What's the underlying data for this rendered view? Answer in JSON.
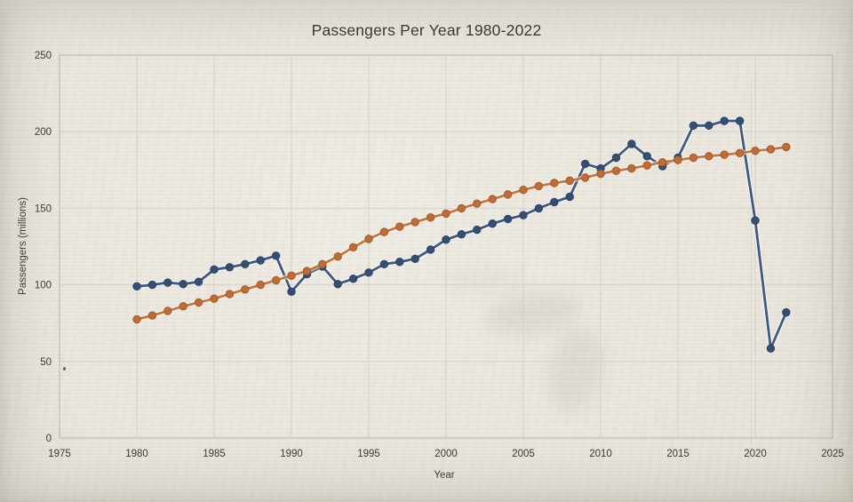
{
  "photo": {
    "paper_color": "#e9e5dc"
  },
  "chart": {
    "title": "Passengers Per Year 1980-2022",
    "x_axis_title": "Year",
    "y_axis_title": "Passengers (millions)"
  },
  "chart_data": {
    "type": "line",
    "title": "Passengers Per Year 1980-2022",
    "xlabel": "Year",
    "ylabel": "Passengers (millions)",
    "xlim": [
      1975,
      2025
    ],
    "ylim": [
      0,
      250
    ],
    "x_ticks": [
      1975,
      1980,
      1985,
      1990,
      1995,
      2000,
      2005,
      2010,
      2015,
      2020,
      2025
    ],
    "y_ticks": [
      0,
      50,
      100,
      150,
      200,
      250
    ],
    "grid": true,
    "legend": "none",
    "text_color": "#3a3a38",
    "grid_color": "#d4d1c8",
    "axis_color": "#c2bfb6",
    "x": [
      1980,
      1981,
      1982,
      1983,
      1984,
      1985,
      1986,
      1987,
      1988,
      1989,
      1990,
      1991,
      1992,
      1993,
      1994,
      1995,
      1996,
      1997,
      1998,
      1999,
      2000,
      2001,
      2002,
      2003,
      2004,
      2005,
      2006,
      2007,
      2008,
      2009,
      2010,
      2011,
      2012,
      2013,
      2014,
      2015,
      2016,
      2017,
      2018,
      2019,
      2020,
      2021,
      2022
    ],
    "series": [
      {
        "name": "passengers-actual-blue",
        "line_color": "#41597e",
        "marker_color": "#344f74",
        "marker_edge": "#2b4265",
        "values": [
          99,
          100,
          101.5,
          100.5,
          102,
          110,
          111.5,
          113.5,
          116,
          119,
          95.5,
          107,
          112,
          100.5,
          104,
          108,
          113.5,
          115,
          117,
          123,
          129.5,
          133,
          136,
          140,
          143,
          145.5,
          150,
          154,
          157.5,
          179,
          176,
          183,
          192,
          184,
          177.5,
          183,
          204,
          204,
          207,
          207,
          142,
          58.5,
          82
        ]
      },
      {
        "name": "trend-orange",
        "line_color": "#c57842",
        "marker_color": "#bf6c36",
        "marker_edge": "#a2582a",
        "values": [
          77.5,
          80,
          83,
          86,
          88.5,
          91,
          94,
          97,
          100,
          103,
          106,
          109,
          113.5,
          118.5,
          124.5,
          130,
          134.5,
          138,
          141,
          144,
          146.5,
          150,
          153,
          156,
          159,
          162,
          164.5,
          166.5,
          168,
          170,
          172.5,
          174.5,
          176,
          178,
          180,
          181.5,
          183,
          184,
          185,
          186,
          187.5,
          188.5,
          190
        ]
      }
    ]
  }
}
